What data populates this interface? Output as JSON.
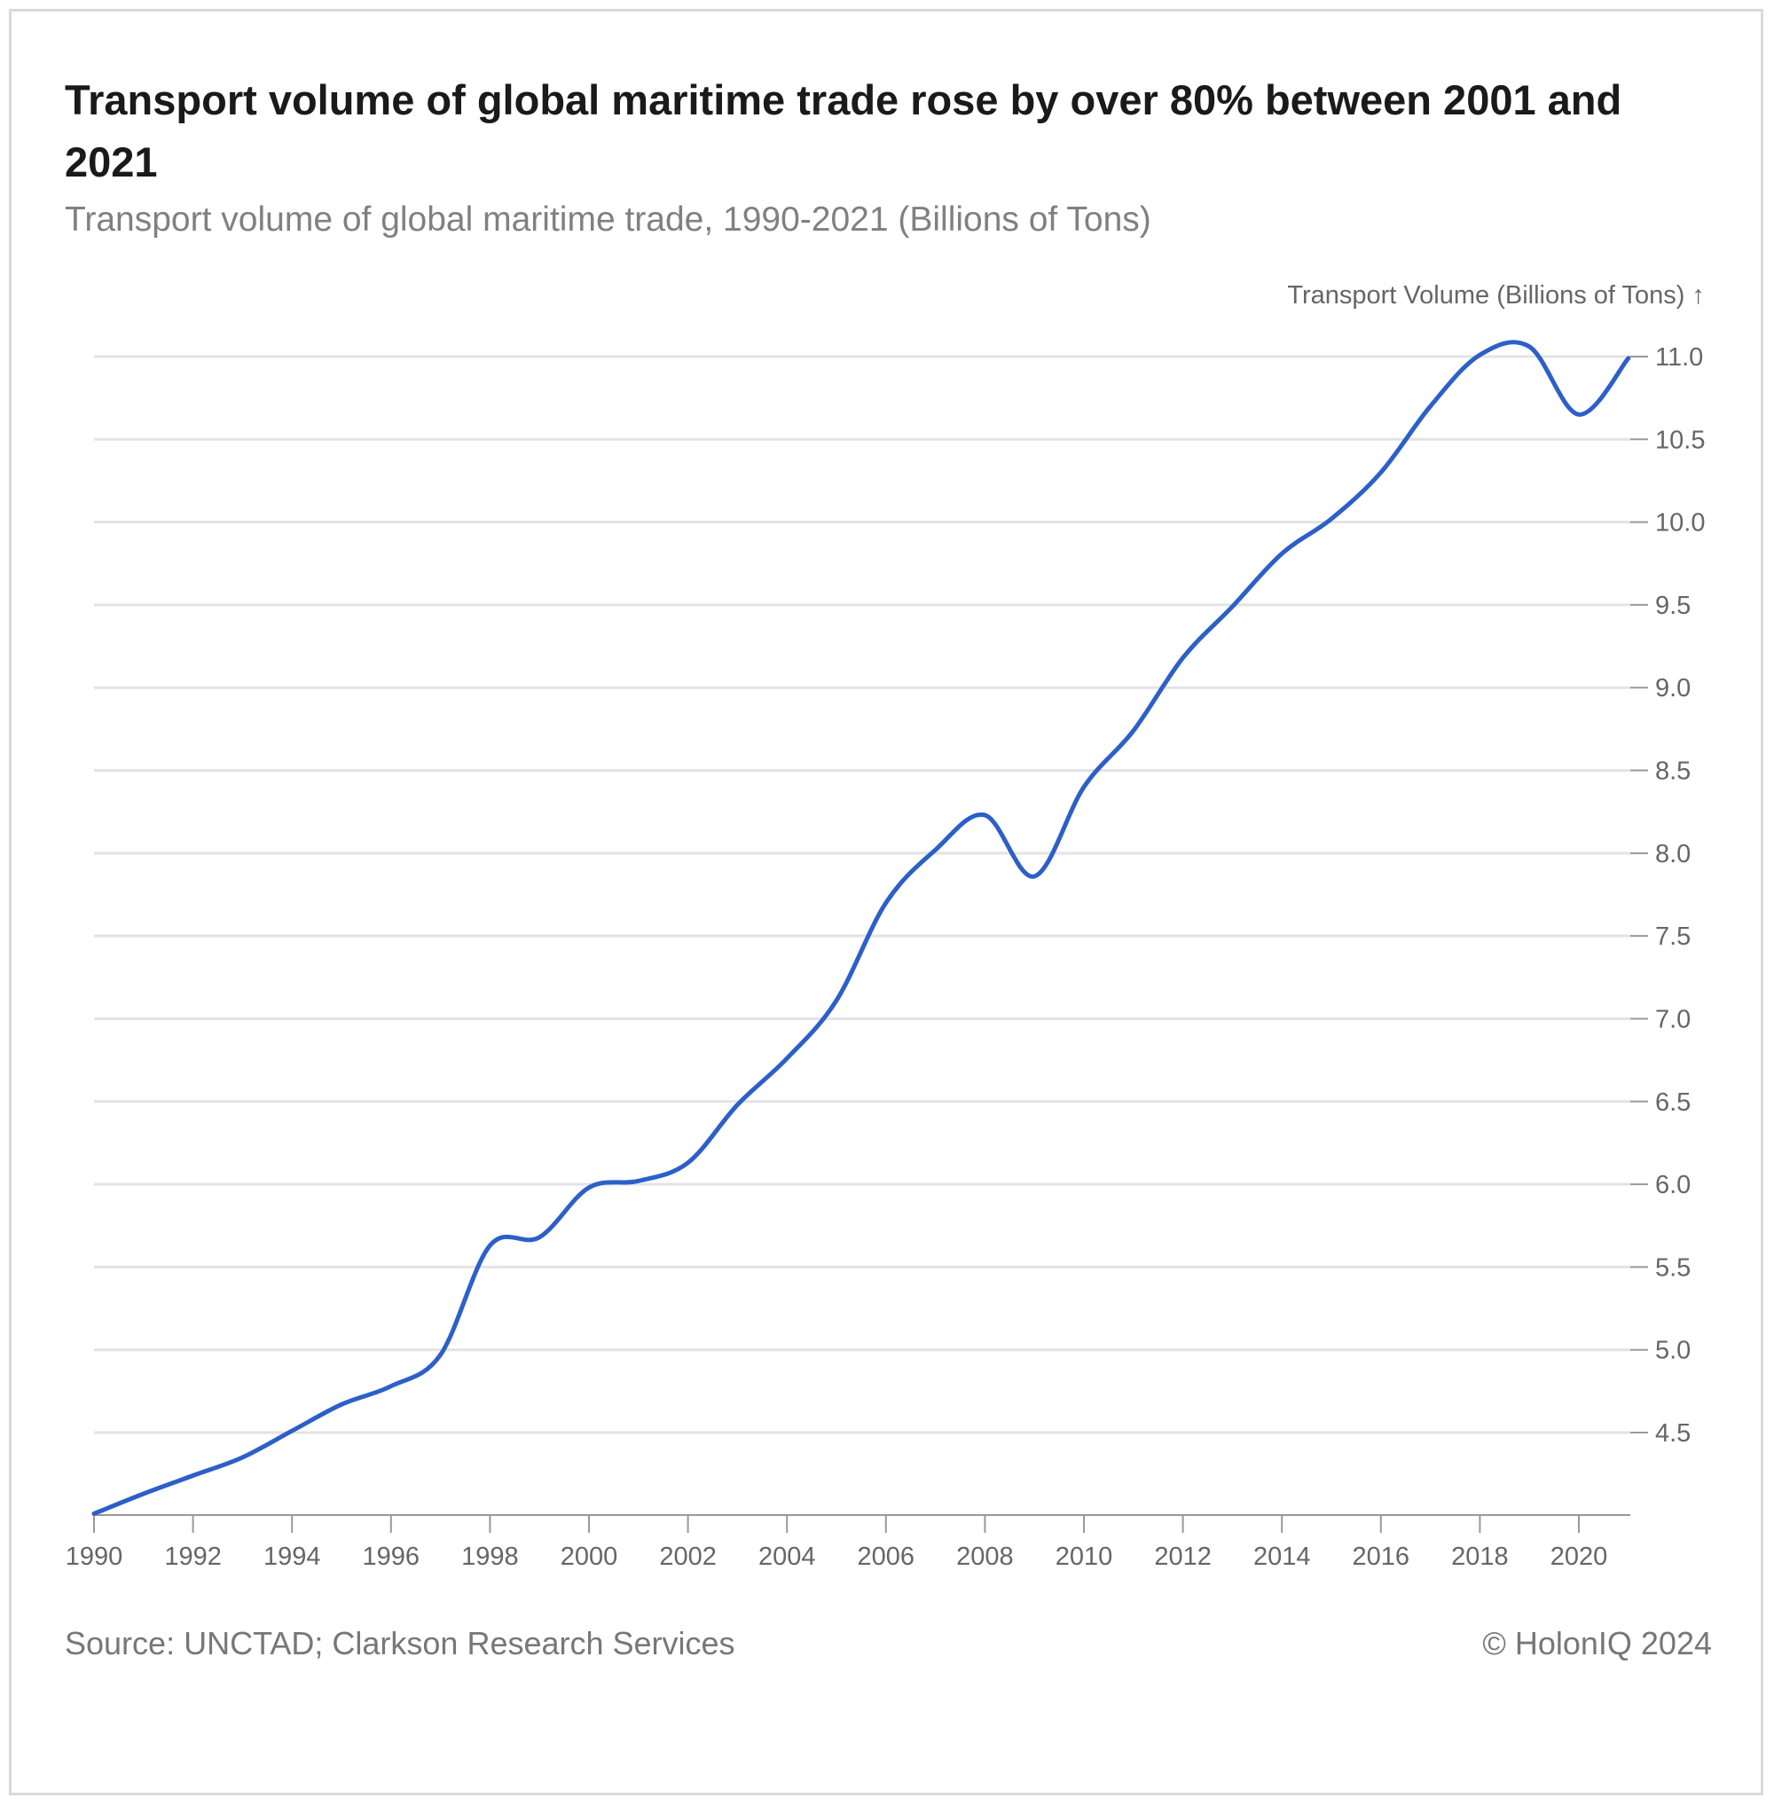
{
  "header": {
    "title": "Transport volume of global maritime trade rose by over 80% between 2001 and 2021",
    "subtitle": "Transport volume of global maritime trade, 1990-2021 (Billions of Tons)"
  },
  "footer": {
    "source": "Source: UNCTAD; Clarkson Research Services",
    "copyright": "© HolonIQ 2024"
  },
  "chart_data": {
    "type": "line",
    "ylabel": "Transport Volume (Billions of Tons) ↑",
    "xlim": [
      1990,
      2021.6
    ],
    "ylim": [
      4.0,
      11.15
    ],
    "x_ticks": [
      1990,
      1992,
      1994,
      1996,
      1998,
      2000,
      2002,
      2004,
      2006,
      2008,
      2010,
      2012,
      2014,
      2016,
      2018,
      2020
    ],
    "y_ticks": [
      4.5,
      5.0,
      5.5,
      6.0,
      6.5,
      7.0,
      7.5,
      8.0,
      8.5,
      9.0,
      9.5,
      10.0,
      10.5,
      11.0
    ],
    "y_axis_position": "right",
    "grid": "horizontal",
    "line_color": "#2c5fc9",
    "series": [
      {
        "x": [
          1990,
          1991,
          1992,
          1993,
          1994,
          1995,
          1996,
          1997,
          1998,
          1999,
          2000,
          2001,
          2002,
          2003,
          2004,
          2005,
          2006,
          2007,
          2008,
          2009,
          2010,
          2011,
          2012,
          2013,
          2014,
          2015,
          2016,
          2017,
          2018,
          2019,
          2020,
          2021
        ],
        "values": [
          4.01,
          4.13,
          4.24,
          4.35,
          4.51,
          4.67,
          4.78,
          4.97,
          5.63,
          5.68,
          5.98,
          6.02,
          6.13,
          6.48,
          6.76,
          7.11,
          7.7,
          8.02,
          8.23,
          7.86,
          8.4,
          8.74,
          9.18,
          9.49,
          9.81,
          10.02,
          10.3,
          10.7,
          11.01,
          11.06,
          10.65,
          10.99
        ]
      }
    ]
  }
}
